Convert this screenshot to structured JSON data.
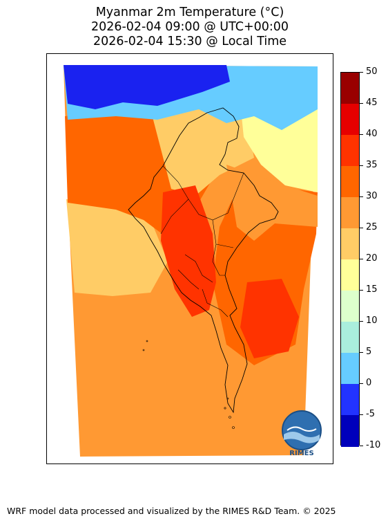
{
  "title": {
    "line1": "Myanmar 2m Temperature (°C)",
    "line2": "2026-02-04 09:00 @ UTC+00:00",
    "line3": "2026-02-04 15:30 @ Local Time"
  },
  "colorbar": {
    "ticks": [
      "50",
      "45",
      "40",
      "35",
      "30",
      "25",
      "20",
      "15",
      "10",
      "5",
      "0",
      "-5",
      "-10"
    ],
    "colors": [
      "#990000",
      "#e60000",
      "#ff3300",
      "#ff6600",
      "#ff9933",
      "#ffcc66",
      "#ffff99",
      "#ddffcc",
      "#aaeedd",
      "#66ccff",
      "#2233ff",
      "#0000bb"
    ]
  },
  "map": {
    "colors": {
      "cold": "#1a22f0",
      "light_blue": "#66ccff",
      "pale_yellow": "#ffff99",
      "light_orange": "#ffcc66",
      "orange": "#ff9933",
      "dark_orange": "#ff6600",
      "red": "#ff3300",
      "border": "#000000"
    }
  },
  "logo": {
    "text": "RIMES"
  },
  "footer": "WRF model data processed and visualized by the RIMES R&D Team. © 2025"
}
